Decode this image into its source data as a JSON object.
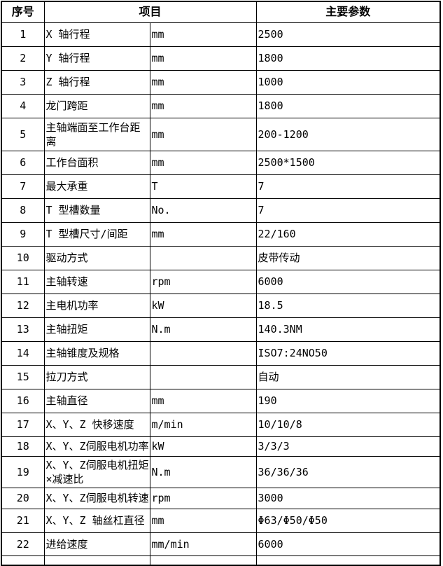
{
  "header": {
    "index": "序号",
    "item": "项目",
    "params": "主要参数"
  },
  "rows": [
    {
      "no": "1",
      "name": "X 轴行程",
      "unit": "mm",
      "value": "2500"
    },
    {
      "no": "2",
      "name": "Y 轴行程",
      "unit": "mm",
      "value": "1800"
    },
    {
      "no": "3",
      "name": "Z 轴行程",
      "unit": "mm",
      "value": "1000"
    },
    {
      "no": "4",
      "name": "龙门跨距",
      "unit": "mm",
      "value": "1800"
    },
    {
      "no": "5",
      "name": "主轴端面至工作台距离",
      "unit": "mm",
      "value": "200-1200"
    },
    {
      "no": "6",
      "name": "工作台面积",
      "unit": "mm",
      "value": "2500*1500"
    },
    {
      "no": "7",
      "name": "最大承重",
      "unit": "T",
      "value": "7"
    },
    {
      "no": "8",
      "name": "T 型槽数量",
      "unit": "No.",
      "value": "7"
    },
    {
      "no": "9",
      "name": "T 型槽尺寸/间距",
      "unit": "mm",
      "value": "22/160"
    },
    {
      "no": "10",
      "name": "驱动方式",
      "unit": "",
      "value": "皮带传动"
    },
    {
      "no": "11",
      "name": "主轴转速",
      "unit": "rpm",
      "value": "6000"
    },
    {
      "no": "12",
      "name": "主电机功率",
      "unit": "kW",
      "value": "18.5"
    },
    {
      "no": "13",
      "name": "主轴扭矩",
      "unit": "N.m",
      "value": "140.3NM"
    },
    {
      "no": "14",
      "name": "主轴锥度及规格",
      "unit": "",
      "value": "ISO7:24NO50"
    },
    {
      "no": "15",
      "name": "拉刀方式",
      "unit": "",
      "value": "自动"
    },
    {
      "no": "16",
      "name": "主轴直径",
      "unit": "mm",
      "value": "190"
    },
    {
      "no": "17",
      "name": "X、Y、Z 快移速度",
      "unit": "m/min",
      "value": "10/10/8"
    },
    {
      "no": "18",
      "name": "X、Y、Z伺服电机功率",
      "unit": "kW",
      "value": "3/3/3"
    },
    {
      "no": "19",
      "name": "X、Y、Z伺服电机扭矩×减速比",
      "unit": "N.m",
      "value": "36/36/36"
    },
    {
      "no": "20",
      "name": "X、Y、Z伺服电机转速",
      "unit": "rpm",
      "value": "3000"
    },
    {
      "no": "21",
      "name": "X、Y、Z 轴丝杠直径",
      "unit": "mm",
      "value": "Φ63/Φ50/Φ50"
    },
    {
      "no": "22",
      "name": "进给速度",
      "unit": "mm/min",
      "value": "6000"
    }
  ]
}
